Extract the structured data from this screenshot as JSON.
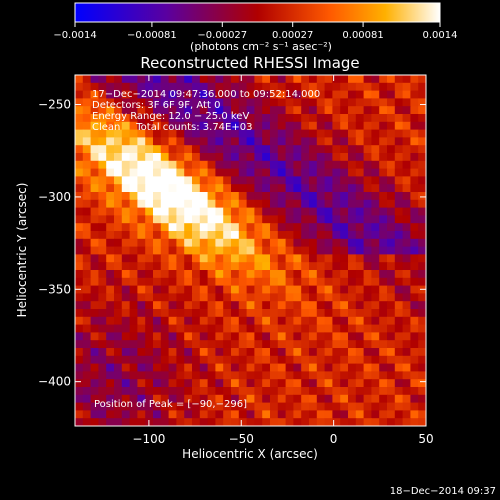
{
  "colorbar": {
    "min": -0.0014,
    "max": 0.0014,
    "tick_labels": [
      "−0.0014",
      "−0.00081",
      "−0.00027",
      "0.00027",
      "0.00081",
      "0.0014"
    ],
    "tick_values": [
      -0.0014,
      -0.00081,
      -0.00027,
      0.00027,
      0.00081,
      0.0014
    ],
    "unit_label": "(photons cm⁻² s⁻¹ asec⁻²)",
    "colormap": [
      "#0000ff",
      "#5a00a0",
      "#b00000",
      "#ff5a00",
      "#ffb000",
      "#ffffff"
    ]
  },
  "chart_data": {
    "type": "heatmap",
    "title": "Reconstructed RHESSI Image",
    "xlabel": "Heliocentric X (arcsec)",
    "ylabel": "Heliocentric Y (arcsec)",
    "xlim": [
      -140,
      50
    ],
    "ylim": [
      -424,
      -234
    ],
    "x_ticks": [
      -100,
      -50,
      0,
      50
    ],
    "x_tick_labels": [
      "−100",
      "−50",
      "0",
      "50"
    ],
    "y_ticks": [
      -250,
      -300,
      -350,
      -400
    ],
    "y_tick_labels": [
      "−250",
      "−300",
      "−350",
      "−400"
    ],
    "peak": {
      "x": -90,
      "y": -296
    },
    "annotations": [
      "17−Dec−2014 09:47:36.000 to 09:52:14.000",
      "Detectors: 3F 6F 9F, Att 0",
      "Energy Range: 12.0 − 25.0 keV",
      "Clean     Total counts: 3.74E+03"
    ],
    "peak_label": "Position of Peak = [−90,−296]"
  },
  "timestamp": "18−Dec−2014 09:37"
}
